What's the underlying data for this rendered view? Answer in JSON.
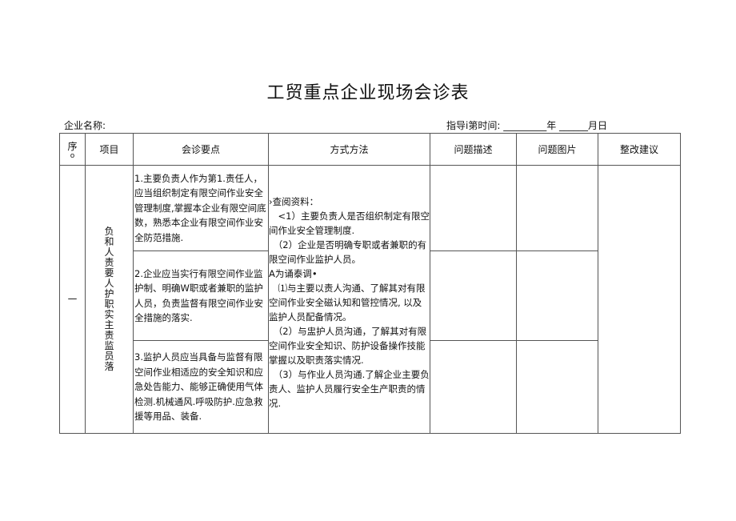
{
  "title": "工贸重点企业现场会诊表",
  "company_label": "企业名称:",
  "date_label": "指导i第时间: _________年 ______月日",
  "headers": [
    "序",
    "项目",
    "会诊要点",
    "方式方法",
    "问题描述",
    "问题图片",
    "整改建议"
  ],
  "seq_sub": "o",
  "row": {
    "seq": "一",
    "item": "负和人责要人护职实主责监员落",
    "points": [
      "1.主要负责人作为第1.责任人，应当组织制定有限空间作业安全管理制度,掌握本企业有限空间底数，熟悉本企业有限空间作业安全防范措施.",
      "2.企业应当实行有限空间作业监护制、明确W职或者兼职的监护人员，负责监督有限空间作业安全措施的落实.",
      "3.监护人员应当具备与监督有限空间作业相适应的安全知识和应急处告能力、能够正确使用气体检测.机械通风.呼吸防护.应急救援等用品、装备."
    ],
    "methods": [
      "›查阅资料：",
      "　<1）主要负责人是否组织制定有限空间作业安全管理制度.",
      "　（2）企业是否明确专职或者兼职的有限空间作业监护人员。",
      "A为诵泰调•",
      "　⑴与主要以责人沟通、了解其对有限空间作业安全磁认知和管控情况, 以及监护人员配备情况。",
      "　（2）与盅护人员沟通，了解其对有限空间作业安全知识、防护设备操作技能掌握以及职责落实情况.",
      "　（3）与作业人员沟通.了解企业主要负责人、监护人员履行安全生产职责的情况."
    ]
  }
}
